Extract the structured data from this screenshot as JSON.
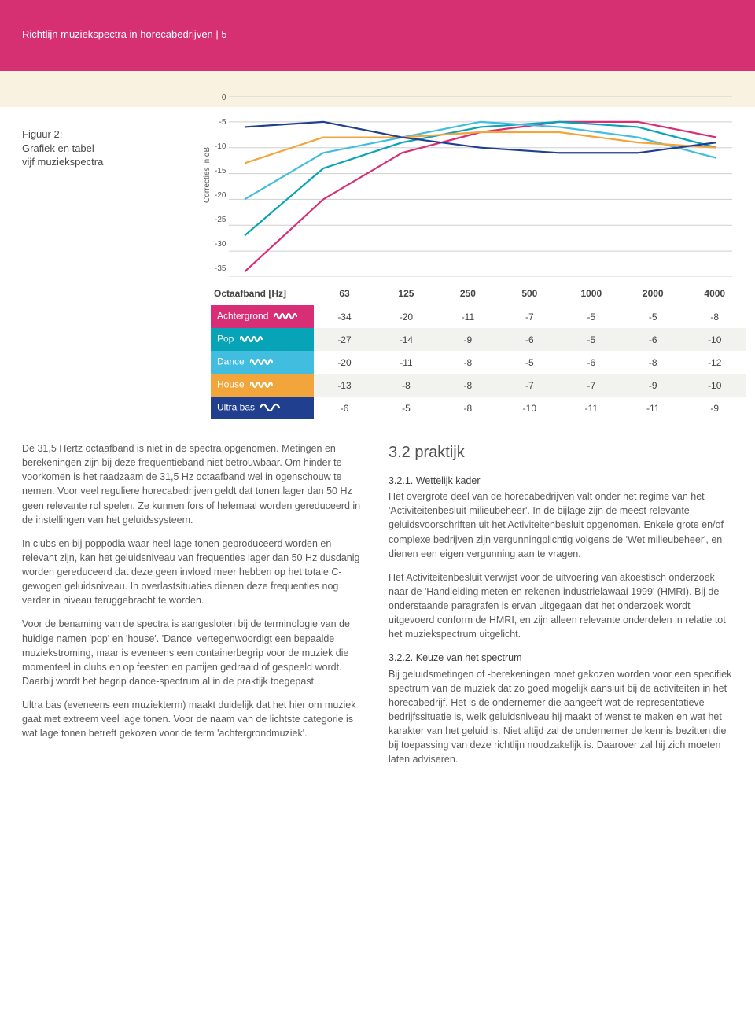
{
  "header": {
    "title": "Richtlijn muziekspectra in horecabedrijven | 5"
  },
  "figure": {
    "caption_line1": "Figuur 2:",
    "caption_line2": "Grafiek en tabel",
    "caption_line3": "vijf muziekspectra",
    "yaxis_label": "Correcties in dB"
  },
  "chart": {
    "type": "line",
    "ylim": [
      -35,
      0
    ],
    "ytick_step": 5,
    "yticks": [
      "0",
      "-5",
      "-10",
      "-15",
      "-20",
      "-25",
      "-30",
      "-35"
    ],
    "xcategories": [
      "63",
      "125",
      "250",
      "500",
      "1000",
      "2000",
      "4000"
    ],
    "grid_color": "#cfcfcf",
    "background_color": "#ffffff",
    "line_width": 2.2,
    "series": [
      {
        "name": "Achtergrond",
        "color": "#d82e75",
        "values": [
          -34,
          -20,
          -11,
          -7,
          -5,
          -5,
          -8
        ]
      },
      {
        "name": "Pop",
        "color": "#07a4b7",
        "values": [
          -27,
          -14,
          -9,
          -6,
          -5,
          -6,
          -10
        ]
      },
      {
        "name": "Dance",
        "color": "#41bde0",
        "values": [
          -20,
          -11,
          -8,
          -5,
          -6,
          -8,
          -12
        ]
      },
      {
        "name": "House",
        "color": "#f2a53a",
        "values": [
          -13,
          -8,
          -8,
          -7,
          -7,
          -9,
          -10
        ]
      },
      {
        "name": "Ultra bas",
        "color": "#213f8f",
        "values": [
          -6,
          -5,
          -8,
          -10,
          -11,
          -11,
          -9
        ]
      }
    ]
  },
  "table": {
    "header_label": "Octaafband [Hz]",
    "columns": [
      "63",
      "125",
      "250",
      "500",
      "1000",
      "2000",
      "4000"
    ],
    "rows": [
      {
        "label": "Achtergrond",
        "bg": "#d82e75",
        "values": [
          "-34",
          "-20",
          "-11",
          "-7",
          "-5",
          "-5",
          "-8"
        ]
      },
      {
        "label": "Pop",
        "bg": "#07a4b7",
        "values": [
          "-27",
          "-14",
          "-9",
          "-6",
          "-5",
          "-6",
          "-10"
        ]
      },
      {
        "label": "Dance",
        "bg": "#41bde0",
        "values": [
          "-20",
          "-11",
          "-8",
          "-5",
          "-6",
          "-8",
          "-12"
        ]
      },
      {
        "label": "House",
        "bg": "#f2a53a",
        "values": [
          "-13",
          "-8",
          "-8",
          "-7",
          "-7",
          "-9",
          "-10"
        ]
      },
      {
        "label": "Ultra bas",
        "bg": "#213f8f",
        "values": [
          "-6",
          "-5",
          "-8",
          "-10",
          "-11",
          "-11",
          "-9"
        ]
      }
    ]
  },
  "body": {
    "left": {
      "p1": "De 31,5 Hertz octaafband is niet in de spectra opgenomen. Metingen en berekeningen zijn bij deze frequentieband niet betrouwbaar. Om hinder te voorkomen is het raadzaam de 31,5 Hz octaafband wel in ogenschouw te nemen. Voor veel reguliere horecabedrijven geldt dat tonen lager dan 50 Hz geen relevante rol spelen. Ze kunnen fors of helemaal worden gereduceerd in de instellingen van het geluidssysteem.",
      "p2": "In clubs en bij poppodia waar heel lage tonen geproduceerd worden en relevant zijn, kan het geluidsniveau van frequenties lager dan 50 Hz dusdanig worden gereduceerd dat deze geen invloed meer hebben op het totale C-gewogen geluidsniveau. In overlastsituaties dienen deze frequenties nog verder in niveau teruggebracht te worden.",
      "p3": "Voor de benaming van de spectra is aangesloten bij de terminologie van de huidige namen 'pop' en 'house'. 'Dance' vertegenwoordigt een bepaalde muziekstroming, maar is eveneens een containerbegrip voor de muziek die momenteel in clubs en op feesten en partijen gedraaid of gespeeld wordt. Daarbij wordt het begrip dance-spectrum al in de praktijk toegepast.",
      "p4": "Ultra bas (eveneens een muziekterm) maakt duidelijk dat het hier om muziek gaat met extreem veel lage tonen. Voor de naam van de lichtste categorie is wat lage tonen betreft gekozen voor de term 'achtergrondmuziek'."
    },
    "right": {
      "h2": "3.2 praktijk",
      "h3a": "3.2.1. Wettelijk kader",
      "p1": "Het overgrote deel van de horecabedrijven valt onder het regime van het 'Activiteitenbesluit milieubeheer'. In de bijlage zijn de meest relevante geluidsvoorschriften uit het Activiteitenbesluit opgenomen. Enkele grote en/of complexe bedrijven zijn vergunningplichtig volgens de 'Wet milieubeheer', en dienen een eigen vergunning aan te vragen.",
      "p2": "Het Activiteitenbesluit verwijst voor de uitvoering van akoestisch onderzoek naar de 'Handleiding meten en rekenen industrielawaai 1999' (HMRI). Bij de onderstaande paragrafen is ervan uitgegaan dat het onderzoek wordt uitgevoerd conform de HMRI, en zijn alleen relevante onderdelen in relatie tot het muziekspectrum uitgelicht.",
      "h3b": "3.2.2. Keuze van het spectrum",
      "p3": "Bij geluidsmetingen of -berekeningen moet gekozen worden voor een specifiek spectrum van de muziek dat zo goed mogelijk aansluit bij de activiteiten in het horecabedrijf. Het is de ondernemer die aangeeft wat de representatieve bedrijfssituatie is, welk geluidsniveau hij maakt of wenst te maken en wat het karakter van het geluid is. Niet altijd zal de ondernemer de kennis bezitten die bij toepassing van deze richtlijn noodzakelijk is. Daarover zal hij zich moeten laten adviseren."
    }
  },
  "colors": {
    "header_bg": "#d63072",
    "beige": "#f9f2e0",
    "swoosh": [
      "#07a4b7",
      "#41bde0",
      "#213f8f"
    ]
  }
}
